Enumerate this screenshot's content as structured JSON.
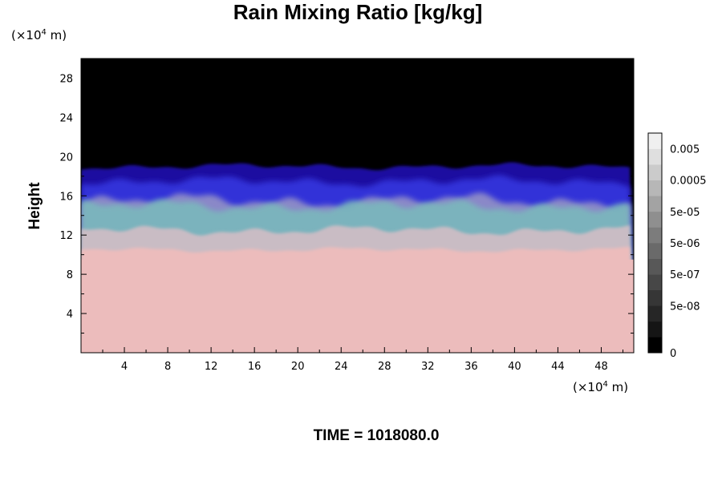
{
  "chart_data": {
    "type": "heatmap",
    "title": "Rain Mixing Ratio [kg/kg]",
    "ylabel": "Height",
    "xlabel": "",
    "x_unit": {
      "prefix": "(×10",
      "exp": "4",
      "suffix": " m)"
    },
    "y_unit": {
      "prefix": "(×10",
      "exp": "4",
      "suffix": " m)"
    },
    "xlim": [
      0,
      51
    ],
    "ylim": [
      0,
      30
    ],
    "x_ticks": [
      4,
      8,
      12,
      16,
      20,
      24,
      28,
      32,
      36,
      40,
      44,
      48
    ],
    "y_ticks": [
      4,
      8,
      12,
      16,
      20,
      24,
      28
    ],
    "x_minor_step": 2,
    "y_minor_step": 2,
    "layers": {
      "top_black_above": 19,
      "blue_top": 19,
      "blue_bottom_base": 15.5,
      "teal_band": [
        12.5,
        15
      ],
      "pink_top_base": 10.5
    },
    "colors": {
      "background_black": "#000000",
      "blue_dark": "#1a10a0",
      "blue_mid": "#3030d8",
      "lavender": "#8a88c8",
      "teal": "#7ab8bc",
      "grey_pink": "#c9bcc4",
      "pink": "#ecbcbc"
    },
    "colorbar": {
      "tick_labels": [
        "0.005",
        "0.0005",
        "5e-05",
        "5e-06",
        "5e-07",
        "5e-08",
        "0"
      ],
      "tick_levels": [
        1,
        3,
        5,
        7,
        9,
        11,
        13
      ],
      "levels": 13,
      "colors": [
        "#000000",
        "#151515",
        "#262626",
        "#363636",
        "#474747",
        "#585858",
        "#6a6a6a",
        "#7c7c7c",
        "#8f8f8f",
        "#a3a3a3",
        "#b7b7b7",
        "#cbcbcb",
        "#dfdfdf",
        "#f0f0f0"
      ]
    },
    "time_label": "TIME = 1018080.0"
  }
}
